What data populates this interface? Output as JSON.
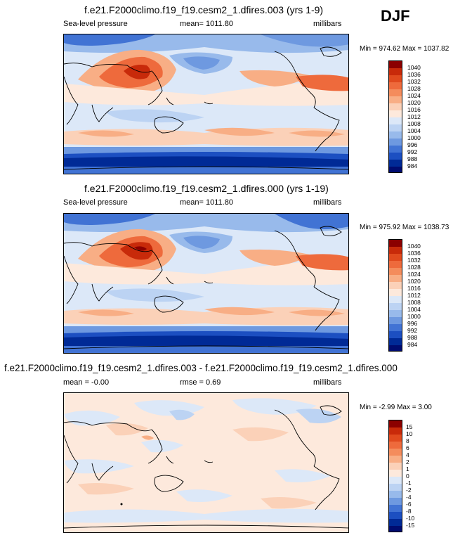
{
  "season": "DJF",
  "panels": [
    {
      "title": "f.e21.F2000climo.f19_f19.cesm2_1.dfires.003 (yrs 1-9)",
      "left_label": "Sea-level pressure",
      "center_label": "mean= 1011.80",
      "units": "millibars",
      "minmax": "Min = 974.62 Max = 1037.82",
      "colorbar_levels": [
        "1040",
        "1036",
        "1032",
        "1028",
        "1024",
        "1020",
        "1016",
        "1012",
        "1008",
        "1004",
        "1000",
        "996",
        "992",
        "988",
        "984"
      ]
    },
    {
      "title": "f.e21.F2000climo.f19_f19.cesm2_1.dfires.000 (yrs 1-19)",
      "left_label": "Sea-level pressure",
      "center_label": "mean= 1011.80",
      "units": "millibars",
      "minmax": "Min = 975.92 Max = 1038.73",
      "colorbar_levels": [
        "1040",
        "1036",
        "1032",
        "1028",
        "1024",
        "1020",
        "1016",
        "1012",
        "1008",
        "1004",
        "1000",
        "996",
        "992",
        "988",
        "984"
      ]
    },
    {
      "title": "f.e21.F2000climo.f19_f19.cesm2_1.dfires.003 - f.e21.F2000climo.f19_f19.cesm2_1.dfires.000",
      "left_label": "mean =  -0.00",
      "center_label": "rmse =   0.69",
      "units": "millibars",
      "minmax": "Min =  -2.99 Max =   3.00",
      "colorbar_levels": [
        "15",
        "10",
        "8",
        "6",
        "4",
        "2",
        "1",
        "0",
        "-1",
        "-2",
        "-4",
        "-6",
        "-8",
        "-10",
        "-15"
      ]
    }
  ],
  "colors": {
    "abs_scale": [
      "#8b0000",
      "#c82a0a",
      "#e04a1e",
      "#ee6a3c",
      "#f48c5c",
      "#f8ae85",
      "#fbd1b8",
      "#fde9dc",
      "#dce8f8",
      "#bcd3f3",
      "#98baeb",
      "#6e99e0",
      "#4173d4",
      "#1c4fc1",
      "#002a96",
      "#000c70"
    ],
    "diff_scale": [
      "#8b0000",
      "#c82a0a",
      "#e04a1e",
      "#ee6a3c",
      "#f48c5c",
      "#f8ae85",
      "#fbd1b8",
      "#fde9dc",
      "#dce8f8",
      "#bcd3f3",
      "#98baeb",
      "#6e99e0",
      "#4173d4",
      "#1c4fc1",
      "#002a96",
      "#000c70"
    ]
  }
}
